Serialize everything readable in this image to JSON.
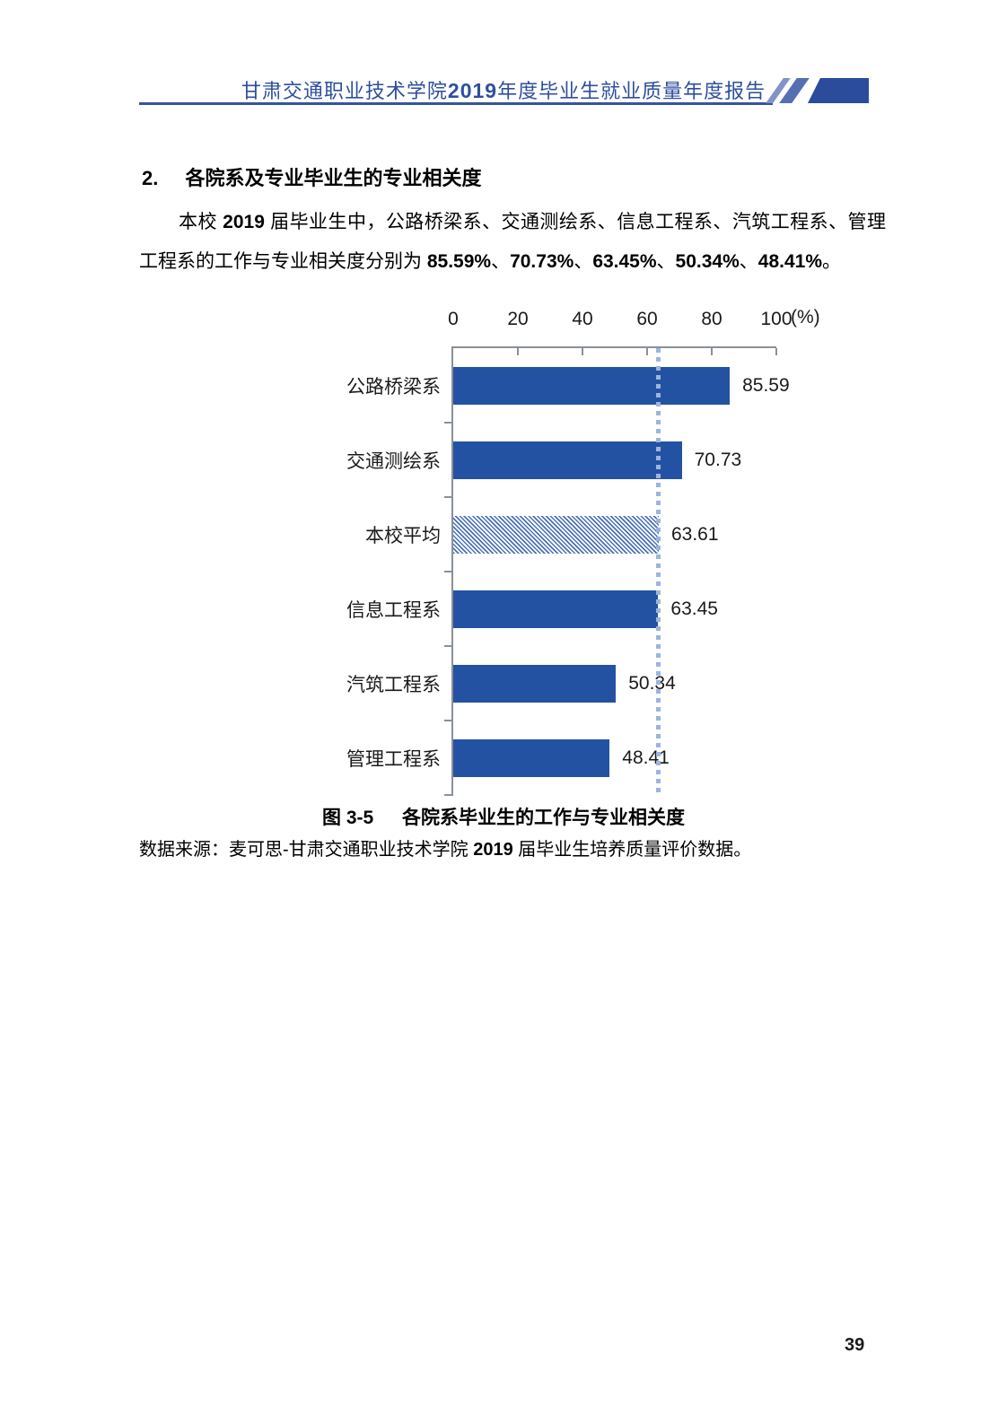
{
  "header": {
    "title_segments": [
      {
        "text": "甘肃交通职业技术学院",
        "bold": false
      },
      {
        "text": "2019",
        "bold": true
      },
      {
        "text": "年度毕业生就业质量年度报告",
        "bold": false
      }
    ],
    "accent_color": "#2e4f9e",
    "block_color": "#2b4c9b"
  },
  "section": {
    "number": "2.",
    "title": "各院系及专业毕业生的专业相关度"
  },
  "paragraph": {
    "segments": [
      {
        "text": "本校 ",
        "bold": false
      },
      {
        "text": "2019",
        "bold": true
      },
      {
        "text": " 届毕业生中，公路桥梁系、交通测绘系、信息工程系、汽筑工程系、管理工程系的工作与专业相关度分别为 ",
        "bold": false
      },
      {
        "text": "85.59%",
        "bold": true
      },
      {
        "text": "、",
        "bold": false
      },
      {
        "text": "70.73%",
        "bold": true
      },
      {
        "text": "、",
        "bold": false
      },
      {
        "text": "63.45%",
        "bold": true
      },
      {
        "text": "、",
        "bold": false
      },
      {
        "text": "50.34%",
        "bold": true
      },
      {
        "text": "、",
        "bold": false
      },
      {
        "text": "48.41%",
        "bold": true
      },
      {
        "text": "。",
        "bold": false
      }
    ]
  },
  "chart_data": {
    "type": "bar",
    "orientation": "horizontal",
    "categories": [
      "公路桥梁系",
      "交通测绘系",
      "本校平均",
      "信息工程系",
      "汽筑工程系",
      "管理工程系"
    ],
    "values": [
      85.59,
      70.73,
      63.61,
      63.45,
      50.34,
      48.41
    ],
    "value_labels": [
      "85.59",
      "70.73",
      "63.61",
      "63.45",
      "50.34",
      "48.41"
    ],
    "highlight_category": "本校平均",
    "reference_line_value": 63.61,
    "xlim": [
      0,
      100
    ],
    "x_ticks": [
      0,
      20,
      40,
      60,
      80,
      100
    ],
    "x_unit": "(%)",
    "bar_color": "#2452a3",
    "hatch_color": "#4a71b8",
    "reference_line_color": "#9db5dc",
    "axis_color": "#8a9096",
    "grid": false,
    "legend": false
  },
  "figure": {
    "caption_label": "图 3-5",
    "caption_title": "各院系毕业生的工作与专业相关度"
  },
  "source": {
    "segments": [
      {
        "text": "数据来源：麦可思-甘肃交通职业技术学院 ",
        "bold": false
      },
      {
        "text": "2019",
        "bold": true
      },
      {
        "text": " 届毕业生培养质量评价数据。",
        "bold": false
      }
    ]
  },
  "page_number": "39"
}
